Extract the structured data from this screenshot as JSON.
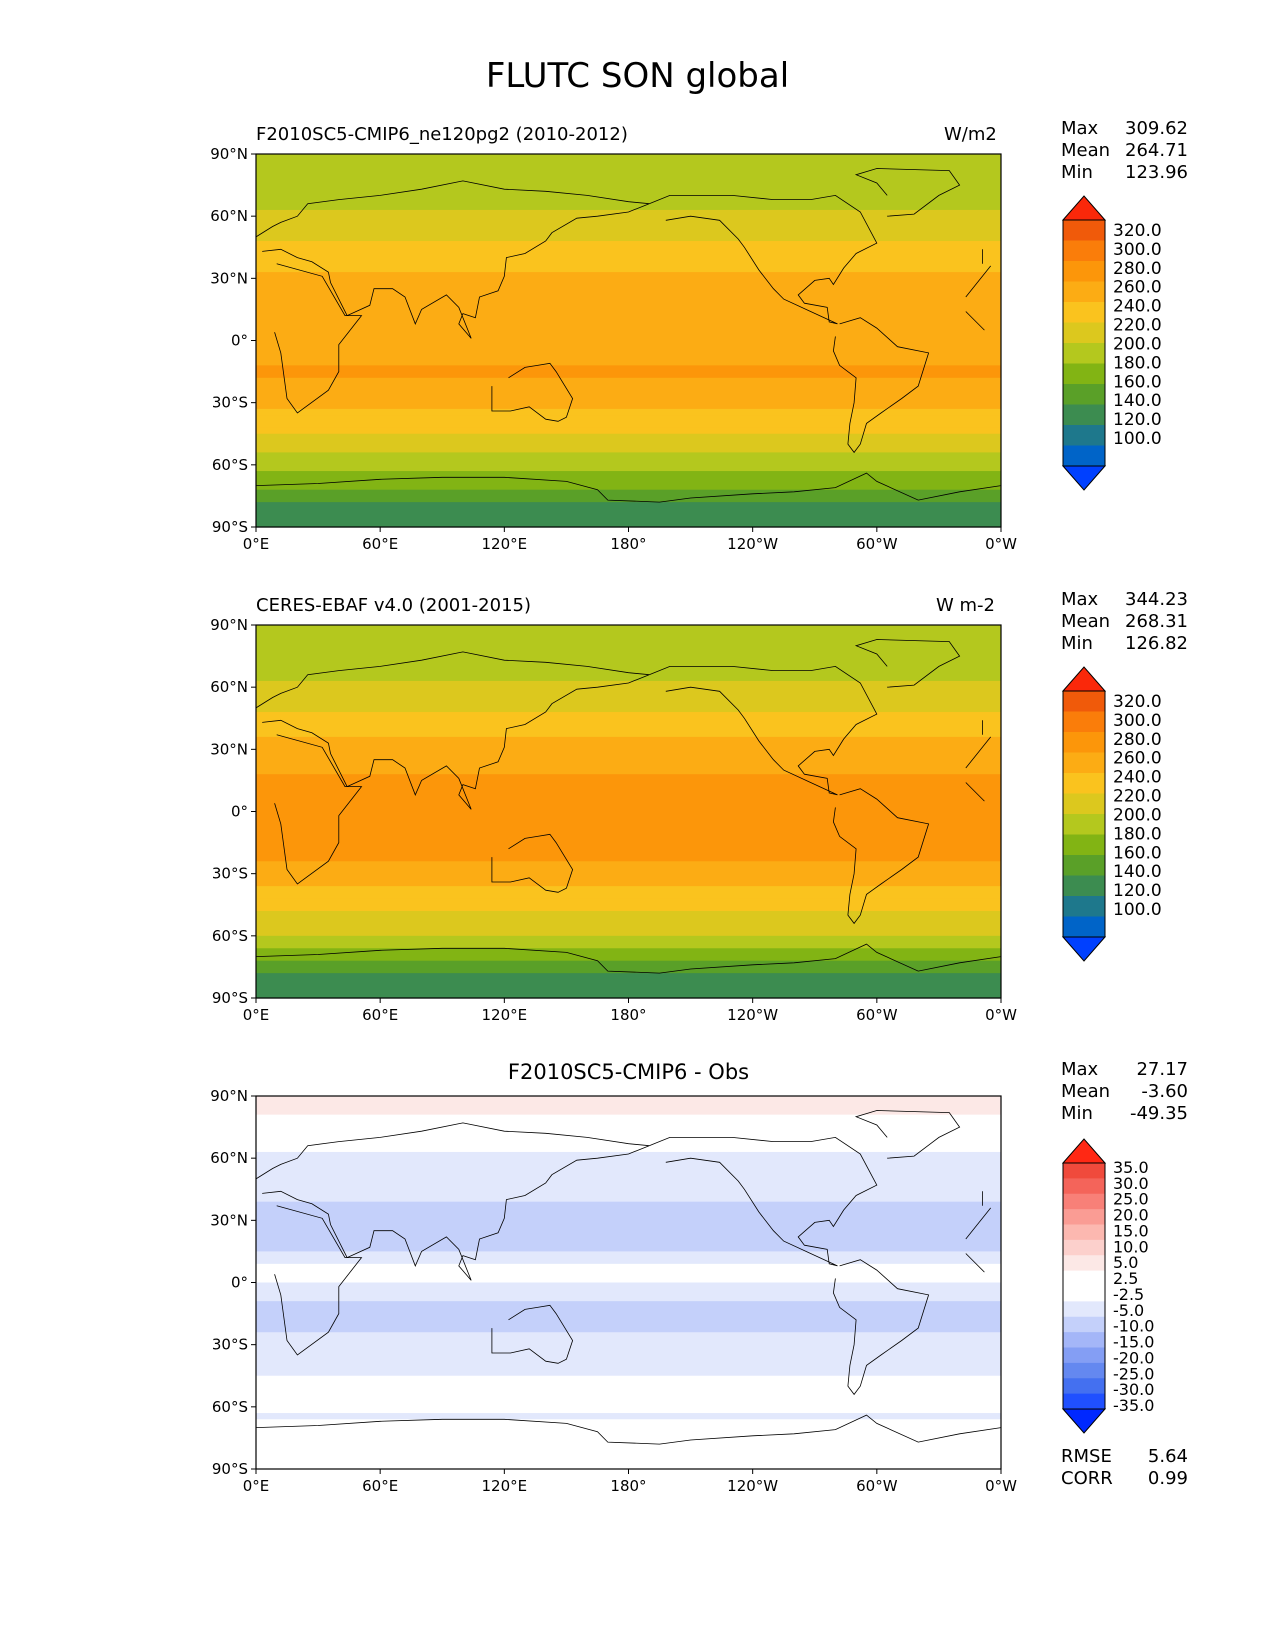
{
  "figure_title": "FLUTC SON global",
  "colors": {
    "abs_levels": [
      "#0040ff",
      "#0064c8",
      "#1e788c",
      "#3c8c50",
      "#5aa028",
      "#82b414",
      "#b4c81e",
      "#dcc81e",
      "#fac31e",
      "#fcac14",
      "#fc960a",
      "#fa7d0a",
      "#f05a0a",
      "#fa280a"
    ],
    "diff_levels": [
      "#0028ff",
      "#2050ff",
      "#4470f0",
      "#6488f0",
      "#849ef4",
      "#a4b6f8",
      "#c4d0fa",
      "#e2e8fc",
      "#ffffff",
      "#ffffff",
      "#fce8e6",
      "#fcd0cc",
      "#fcb8b0",
      "#fa9c94",
      "#f88078",
      "#f4645a",
      "#f04a3c",
      "#ff2814"
    ],
    "coast": "#000000"
  },
  "chart_data": [
    {
      "type": "heatmap",
      "title_left": "F2010SC5-CMIP6_ne120pg2 (2010-2012)",
      "title_right": "W/m2",
      "stats": [
        {
          "label": "Max",
          "value": "309.62"
        },
        {
          "label": "Mean",
          "value": "264.71"
        },
        {
          "label": "Min",
          "value": "123.96"
        }
      ],
      "colorbar_labels": [
        "320.0",
        "300.0",
        "280.0",
        "260.0",
        "240.0",
        "220.0",
        "200.0",
        "180.0",
        "160.0",
        "140.0",
        "120.0",
        "100.0"
      ],
      "colorbar_levels": [
        100,
        120,
        140,
        160,
        180,
        200,
        220,
        240,
        260,
        280,
        300,
        320
      ],
      "lat_ticks": [
        "90°N",
        "60°N",
        "30°N",
        "0°",
        "30°S",
        "60°S",
        "90°S"
      ],
      "lon_ticks": [
        "0°E",
        "60°E",
        "120°E",
        "180°",
        "120°W",
        "60°W",
        "0°W"
      ],
      "xlim": [
        0,
        360
      ],
      "ylim": [
        -90,
        90
      ],
      "zonal_profile": [
        {
          "lat": 90,
          "value": 205
        },
        {
          "lat": 75,
          "value": 205
        },
        {
          "lat": 60,
          "value": 222
        },
        {
          "lat": 45,
          "value": 242
        },
        {
          "lat": 30,
          "value": 262
        },
        {
          "lat": 15,
          "value": 278
        },
        {
          "lat": 0,
          "value": 268
        },
        {
          "lat": -15,
          "value": 282
        },
        {
          "lat": -30,
          "value": 268
        },
        {
          "lat": -45,
          "value": 238
        },
        {
          "lat": -60,
          "value": 212
        },
        {
          "lat": -70,
          "value": 185
        },
        {
          "lat": -80,
          "value": 150
        },
        {
          "lat": -90,
          "value": 140
        }
      ]
    },
    {
      "type": "heatmap",
      "title_left": "CERES-EBAF v4.0 (2001-2015)",
      "title_right": "W m-2",
      "stats": [
        {
          "label": "Max",
          "value": "344.23"
        },
        {
          "label": "Mean",
          "value": "268.31"
        },
        {
          "label": "Min",
          "value": "126.82"
        }
      ],
      "colorbar_labels": [
        "320.0",
        "300.0",
        "280.0",
        "260.0",
        "240.0",
        "220.0",
        "200.0",
        "180.0",
        "160.0",
        "140.0",
        "120.0",
        "100.0"
      ],
      "colorbar_levels": [
        100,
        120,
        140,
        160,
        180,
        200,
        220,
        240,
        260,
        280,
        300,
        320
      ],
      "lat_ticks": [
        "90°N",
        "60°N",
        "30°N",
        "0°",
        "30°S",
        "60°S",
        "90°S"
      ],
      "lon_ticks": [
        "0°E",
        "60°E",
        "120°E",
        "180°",
        "120°W",
        "60°W",
        "0°W"
      ],
      "xlim": [
        0,
        360
      ],
      "ylim": [
        -90,
        90
      ],
      "zonal_profile": [
        {
          "lat": 90,
          "value": 200
        },
        {
          "lat": 75,
          "value": 205
        },
        {
          "lat": 60,
          "value": 225
        },
        {
          "lat": 45,
          "value": 245
        },
        {
          "lat": 30,
          "value": 268
        },
        {
          "lat": 15,
          "value": 282
        },
        {
          "lat": 0,
          "value": 282
        },
        {
          "lat": -15,
          "value": 288
        },
        {
          "lat": -30,
          "value": 272
        },
        {
          "lat": -45,
          "value": 245
        },
        {
          "lat": -60,
          "value": 218
        },
        {
          "lat": -70,
          "value": 188
        },
        {
          "lat": -80,
          "value": 152
        },
        {
          "lat": -90,
          "value": 140
        }
      ]
    },
    {
      "type": "heatmap",
      "title_center": "F2010SC5-CMIP6 - Obs",
      "stats": [
        {
          "label": "Max",
          "value": "27.17"
        },
        {
          "label": "Mean",
          "value": "-3.60"
        },
        {
          "label": "Min",
          "value": "-49.35"
        }
      ],
      "extra_stats": [
        {
          "label": "RMSE",
          "value": "5.64"
        },
        {
          "label": "CORR",
          "value": "0.99"
        }
      ],
      "colorbar_labels": [
        "35.0",
        "30.0",
        "25.0",
        "20.0",
        "15.0",
        "10.0",
        "5.0",
        "2.5",
        "-2.5",
        "-5.0",
        "-10.0",
        "-15.0",
        "-20.0",
        "-25.0",
        "-30.0",
        "-35.0"
      ],
      "colorbar_levels": [
        -35,
        -30,
        -25,
        -20,
        -15,
        -10,
        -5,
        -2.5,
        2.5,
        5,
        10,
        15,
        20,
        25,
        30,
        35
      ],
      "lat_ticks": [
        "90°N",
        "60°N",
        "30°N",
        "0°",
        "30°S",
        "60°S",
        "90°S"
      ],
      "lon_ticks": [
        "0°E",
        "60°E",
        "120°E",
        "180°",
        "120°W",
        "60°W",
        "0°W"
      ],
      "xlim": [
        0,
        360
      ],
      "ylim": [
        -90,
        90
      ],
      "zonal_profile": [
        {
          "lat": 90,
          "value": 7
        },
        {
          "lat": 78,
          "value": 4
        },
        {
          "lat": 70,
          "value": 0
        },
        {
          "lat": 60,
          "value": -4
        },
        {
          "lat": 45,
          "value": -4
        },
        {
          "lat": 30,
          "value": -7
        },
        {
          "lat": 15,
          "value": -5
        },
        {
          "lat": 5,
          "value": 0
        },
        {
          "lat": -10,
          "value": -6
        },
        {
          "lat": -25,
          "value": -5
        },
        {
          "lat": -40,
          "value": -4
        },
        {
          "lat": -55,
          "value": 0
        },
        {
          "lat": -65,
          "value": -3
        },
        {
          "lat": -75,
          "value": 3
        },
        {
          "lat": -90,
          "value": 4
        }
      ]
    }
  ]
}
